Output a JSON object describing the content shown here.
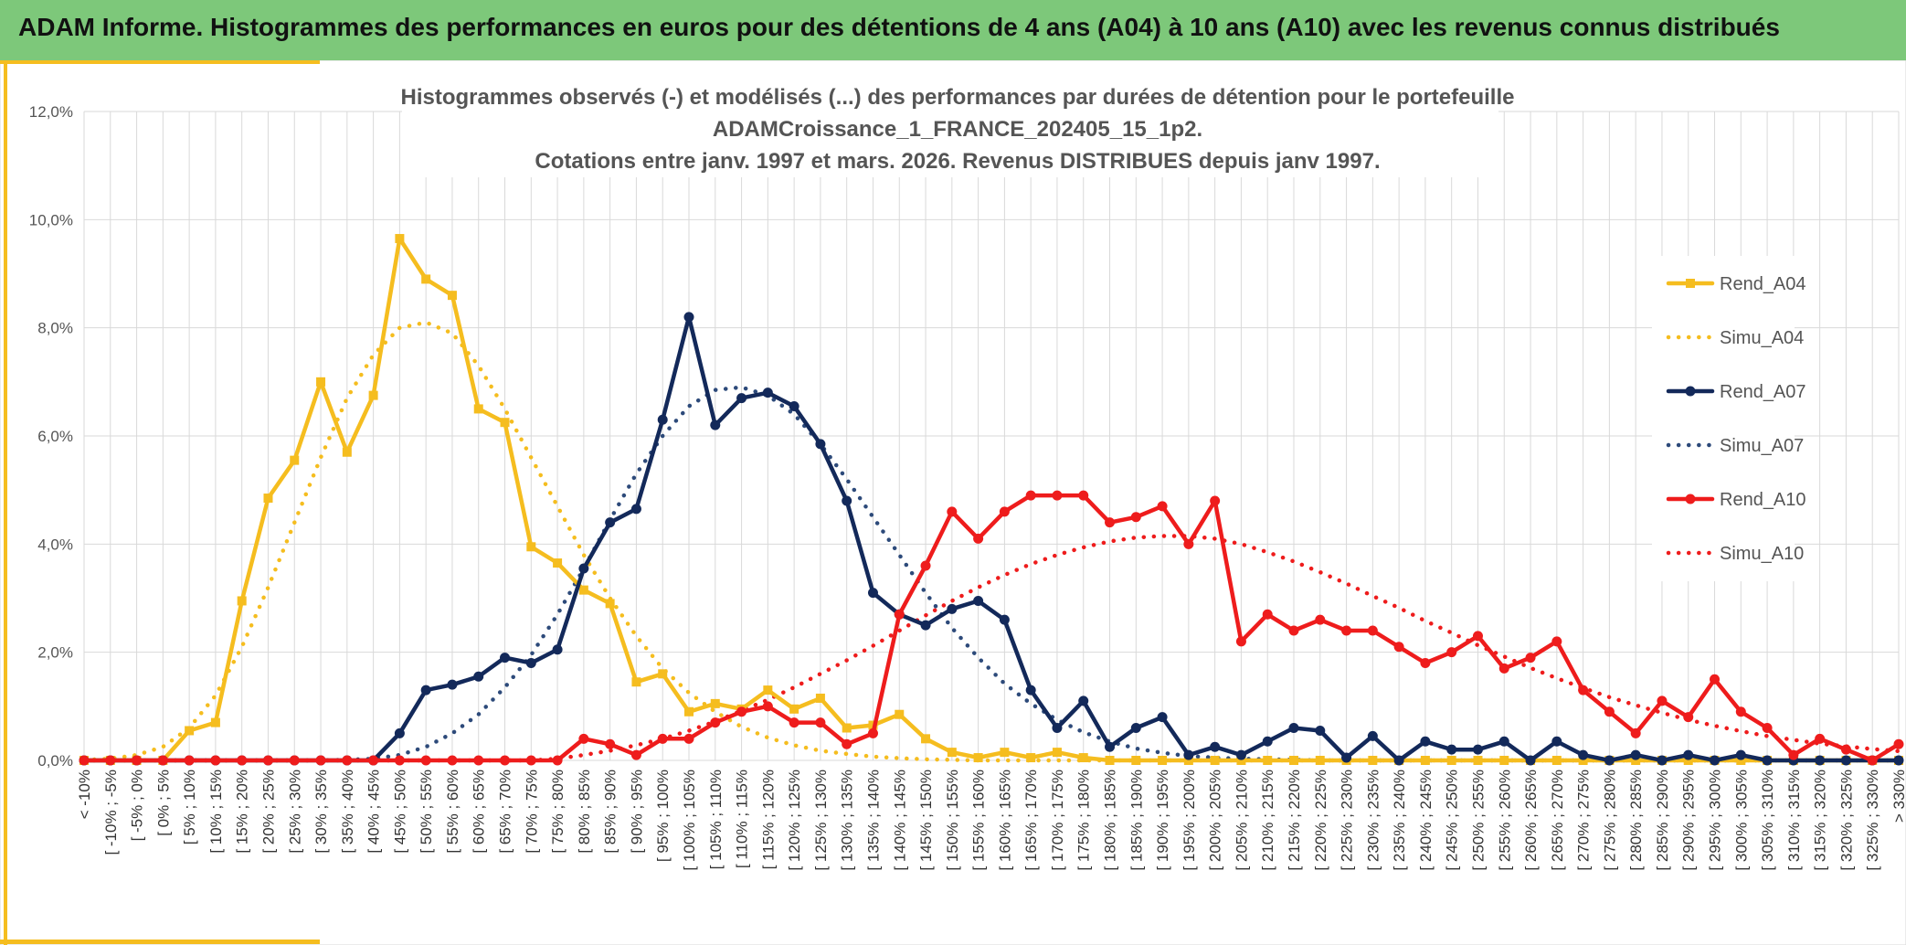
{
  "header": {
    "title": "ADAM Informe. Histogrammes des performances en euros pour des détentions de 4 ans (A04) à 10 ans (A10) avec les revenus connus distribués"
  },
  "chart_data": {
    "type": "line",
    "title_lines": [
      "Histogrammes observés (-) et modélisés (...) des performances par durées de détention pour le portefeuille",
      "ADAMCroissance_1_FRANCE_202405_15_1p2.",
      "Cotations entre janv. 1997 et mars. 2026. Revenus DISTRIBUES depuis janv 1997."
    ],
    "xlabel": "",
    "ylabel": "",
    "ylim": [
      0,
      12
    ],
    "yticks": [
      "0,0%",
      "2,0%",
      "4,0%",
      "6,0%",
      "8,0%",
      "10,0%",
      "12,0%"
    ],
    "grid": true,
    "legend_position": "right",
    "categories": [
      "< -10%",
      "[ -10% ; -5%",
      "[ -5% ; 0%",
      "[ 0% ; 5%",
      "[ 5% ; 10%",
      "[ 10% ; 15%",
      "[ 15% ; 20%",
      "[ 20% ; 25%",
      "[ 25% ; 30%",
      "[ 30% ; 35%",
      "[ 35% ; 40%",
      "[ 40% ; 45%",
      "[ 45% ; 50%",
      "[ 50% ; 55%",
      "[ 55% ; 60%",
      "[ 60% ; 65%",
      "[ 65% ; 70%",
      "[ 70% ; 75%",
      "[ 75% ; 80%",
      "[ 80% ; 85%",
      "[ 85% ; 90%",
      "[ 90% ; 95%",
      "[ 95% ; 100%",
      "[ 100% ; 105%",
      "[ 105% ; 110%",
      "[ 110% ; 115%",
      "[ 115% ; 120%",
      "[ 120% ; 125%",
      "[ 125% ; 130%",
      "[ 130% ; 135%",
      "[ 135% ; 140%",
      "[ 140% ; 145%",
      "[ 145% ; 150%",
      "[ 150% ; 155%",
      "[ 155% ; 160%",
      "[ 160% ; 165%",
      "[ 165% ; 170%",
      "[ 170% ; 175%",
      "[ 175% ; 180%",
      "[ 180% ; 185%",
      "[ 185% ; 190%",
      "[ 190% ; 195%",
      "[ 195% ; 200%",
      "[ 200% ; 205%",
      "[ 205% ; 210%",
      "[ 210% ; 215%",
      "[ 215% ; 220%",
      "[ 220% ; 225%",
      "[ 225% ; 230%",
      "[ 230% ; 235%",
      "[ 235% ; 240%",
      "[ 240% ; 245%",
      "[ 245% ; 250%",
      "[ 250% ; 255%",
      "[ 255% ; 260%",
      "[ 260% ; 265%",
      "[ 265% ; 270%",
      "[ 270% ; 275%",
      "[ 275% ; 280%",
      "[ 280% ; 285%",
      "[ 285% ; 290%",
      "[ 290% ; 295%",
      "[ 295% ; 300%",
      "[ 300% ; 305%",
      "[ 305% ; 310%",
      "[ 310% ; 315%",
      "[ 315% ; 320%",
      "[ 320% ; 325%",
      "[ 325% ; 330%",
      "> 330%"
    ],
    "series": [
      {
        "name": "Rend_A04",
        "color": "#f5bd1f",
        "style": "solid",
        "marker": "square",
        "values": [
          0,
          0,
          0,
          0,
          0.55,
          0.7,
          2.95,
          4.85,
          5.55,
          7.0,
          5.7,
          6.75,
          9.65,
          8.9,
          8.6,
          6.5,
          6.25,
          3.95,
          3.65,
          3.15,
          2.9,
          1.45,
          1.6,
          0.9,
          1.05,
          0.95,
          1.3,
          0.95,
          1.15,
          0.6,
          0.65,
          0.85,
          0.4,
          0.15,
          0.05,
          0.15,
          0.05,
          0.15,
          0.05,
          0,
          0,
          0,
          0,
          0,
          0,
          0,
          0,
          0,
          0,
          0,
          0,
          0,
          0,
          0,
          0,
          0,
          0,
          0,
          0,
          0,
          0,
          0,
          0,
          0,
          0,
          0,
          0,
          0,
          0,
          0
        ]
      },
      {
        "name": "Simu_A04",
        "color": "#f5bd1f",
        "style": "dotted",
        "values": [
          0.01,
          0.03,
          0.1,
          0.25,
          0.6,
          1.2,
          2.1,
          3.2,
          4.4,
          5.6,
          6.7,
          7.5,
          8.0,
          8.1,
          7.9,
          7.3,
          6.5,
          5.6,
          4.7,
          3.8,
          3.0,
          2.3,
          1.7,
          1.25,
          0.9,
          0.62,
          0.42,
          0.28,
          0.18,
          0.12,
          0.07,
          0.04,
          0.02,
          0.01,
          0,
          0,
          0,
          0,
          0,
          0,
          0,
          0,
          0,
          0,
          0,
          0,
          0,
          0,
          0,
          0,
          0,
          0,
          0,
          0,
          0,
          0,
          0,
          0,
          0,
          0,
          0,
          0,
          0,
          0,
          0,
          0,
          0,
          0,
          0,
          0
        ]
      },
      {
        "name": "Rend_A07",
        "color": "#13295a",
        "style": "solid",
        "marker": "circle",
        "values": [
          0,
          0,
          0,
          0,
          0,
          0,
          0,
          0,
          0,
          0,
          0,
          0,
          0.5,
          1.3,
          1.4,
          1.55,
          1.9,
          1.8,
          2.05,
          3.55,
          4.4,
          4.65,
          6.3,
          8.2,
          6.2,
          6.7,
          6.8,
          6.55,
          5.85,
          4.8,
          3.1,
          2.7,
          2.5,
          2.8,
          2.95,
          2.6,
          1.3,
          0.6,
          1.1,
          0.25,
          0.6,
          0.8,
          0.1,
          0.25,
          0.1,
          0.35,
          0.6,
          0.55,
          0.05,
          0.45,
          0,
          0.35,
          0.2,
          0.2,
          0.35,
          0,
          0.35,
          0.1,
          0,
          0.1,
          0,
          0.1,
          0,
          0.1,
          0,
          0,
          0,
          0,
          0,
          0
        ]
      },
      {
        "name": "Simu_A07",
        "color": "#2d4a7a",
        "style": "dotted",
        "values": [
          0,
          0,
          0,
          0,
          0,
          0,
          0,
          0,
          0,
          0,
          0.01,
          0.03,
          0.1,
          0.25,
          0.5,
          0.85,
          1.35,
          1.95,
          2.7,
          3.55,
          4.45,
          5.3,
          6.0,
          6.55,
          6.85,
          6.9,
          6.75,
          6.4,
          5.85,
          5.2,
          4.5,
          3.8,
          3.1,
          2.45,
          1.9,
          1.42,
          1.05,
          0.75,
          0.52,
          0.35,
          0.22,
          0.14,
          0.08,
          0.05,
          0.03,
          0.02,
          0.01,
          0,
          0,
          0,
          0,
          0,
          0,
          0,
          0,
          0,
          0,
          0,
          0,
          0,
          0,
          0,
          0,
          0,
          0,
          0,
          0,
          0,
          0,
          0
        ]
      },
      {
        "name": "Rend_A10",
        "color": "#ee1c1c",
        "style": "solid",
        "marker": "circle",
        "values": [
          0,
          0,
          0,
          0,
          0,
          0,
          0,
          0,
          0,
          0,
          0,
          0,
          0,
          0,
          0,
          0,
          0,
          0,
          0,
          0.4,
          0.3,
          0.1,
          0.4,
          0.4,
          0.7,
          0.9,
          1.0,
          0.7,
          0.7,
          0.3,
          0.5,
          2.7,
          3.6,
          4.6,
          4.1,
          4.6,
          4.9,
          4.9,
          4.9,
          4.4,
          4.5,
          4.7,
          4.0,
          4.8,
          2.2,
          2.7,
          2.4,
          2.6,
          2.4,
          2.4,
          2.1,
          1.8,
          2.0,
          2.3,
          1.7,
          1.9,
          2.2,
          1.3,
          0.9,
          0.5,
          1.1,
          0.8,
          1.5,
          0.9,
          0.6,
          0.1,
          0.4,
          0.2,
          0,
          0.3
        ]
      },
      {
        "name": "Simu_A10",
        "color": "#ee1c1c",
        "style": "dotted",
        "values": [
          0,
          0,
          0,
          0,
          0,
          0,
          0,
          0,
          0,
          0,
          0,
          0,
          0,
          0,
          0,
          0,
          0,
          0,
          0.03,
          0.1,
          0.18,
          0.28,
          0.4,
          0.55,
          0.72,
          0.92,
          1.12,
          1.35,
          1.6,
          1.85,
          2.12,
          2.4,
          2.68,
          2.95,
          3.2,
          3.43,
          3.63,
          3.8,
          3.94,
          4.05,
          4.12,
          4.15,
          4.15,
          4.1,
          4.0,
          3.85,
          3.68,
          3.48,
          3.27,
          3.04,
          2.82,
          2.58,
          2.36,
          2.13,
          1.92,
          1.71,
          1.52,
          1.34,
          1.17,
          1.02,
          0.88,
          0.75,
          0.64,
          0.54,
          0.45,
          0.38,
          0.31,
          0.26,
          0.21,
          0.17
        ]
      }
    ]
  }
}
